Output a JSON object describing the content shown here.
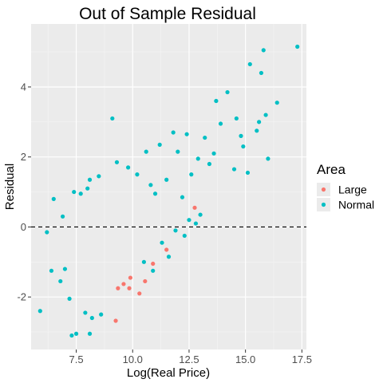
{
  "chart_data": {
    "type": "scatter",
    "title": "Out of Sample Residual",
    "xlabel": "Log(Real Price)",
    "ylabel": "Residual",
    "xlim": [
      5.5,
      17.7
    ],
    "ylim": [
      -3.5,
      5.8
    ],
    "x_ticks": [
      "7.5",
      "10.0",
      "12.5",
      "15.0",
      "17.5"
    ],
    "y_ticks": [
      "-2",
      "0",
      "2",
      "4"
    ],
    "grid": true,
    "reference_line": {
      "y": 0,
      "style": "dashed"
    },
    "legend": {
      "title": "Area",
      "position": "right",
      "entries": [
        {
          "name": "Large",
          "color": "#F8766D"
        },
        {
          "name": "Normal",
          "color": "#00BFC4"
        }
      ]
    },
    "series": [
      {
        "name": "Large",
        "color": "#F8766D",
        "points": [
          [
            9.25,
            -2.68
          ],
          [
            9.6,
            -1.63
          ],
          [
            9.85,
            -1.75
          ],
          [
            10.3,
            -1.9
          ],
          [
            10.55,
            -1.55
          ],
          [
            9.35,
            -1.75
          ],
          [
            11.5,
            -0.65
          ],
          [
            12.75,
            0.55
          ],
          [
            9.9,
            -1.45
          ],
          [
            10.9,
            -1.05
          ]
        ]
      },
      {
        "name": "Normal",
        "color": "#00BFC4",
        "sampled": true,
        "points": [
          [
            17.3,
            5.15
          ],
          [
            15.8,
            5.05
          ],
          [
            15.2,
            4.65
          ],
          [
            15.7,
            4.4
          ],
          [
            16.4,
            3.55
          ],
          [
            14.2,
            3.85
          ],
          [
            13.7,
            3.6
          ],
          [
            15.9,
            3.2
          ],
          [
            15.5,
            2.75
          ],
          [
            14.6,
            3.1
          ],
          [
            13.9,
            2.95
          ],
          [
            13.2,
            2.55
          ],
          [
            12.4,
            2.65
          ],
          [
            11.8,
            2.7
          ],
          [
            14.9,
            2.3
          ],
          [
            13.6,
            2.1
          ],
          [
            12.9,
            1.95
          ],
          [
            16.0,
            1.95
          ],
          [
            11.2,
            2.35
          ],
          [
            10.6,
            2.15
          ],
          [
            9.1,
            3.1
          ],
          [
            12.0,
            2.15
          ],
          [
            14.8,
            2.6
          ],
          [
            13.4,
            1.8
          ],
          [
            12.6,
            1.5
          ],
          [
            6.5,
            0.8
          ],
          [
            6.2,
            -0.15
          ],
          [
            5.9,
            -2.4
          ],
          [
            7.0,
            -1.2
          ],
          [
            7.3,
            -3.1
          ],
          [
            7.5,
            -3.05
          ],
          [
            8.1,
            -3.05
          ],
          [
            8.2,
            -2.6
          ],
          [
            7.9,
            -2.45
          ],
          [
            8.6,
            -2.5
          ],
          [
            7.2,
            -2.05
          ],
          [
            6.8,
            -1.55
          ],
          [
            6.4,
            -1.25
          ],
          [
            6.9,
            0.3
          ],
          [
            7.4,
            1.0
          ],
          [
            7.7,
            0.95
          ],
          [
            8.0,
            1.1
          ],
          [
            8.5,
            1.45
          ],
          [
            8.1,
            1.35
          ],
          [
            9.3,
            1.85
          ],
          [
            9.8,
            1.7
          ],
          [
            10.2,
            1.5
          ],
          [
            12.8,
            0.1
          ],
          [
            13.0,
            0.35
          ],
          [
            12.2,
            0.85
          ],
          [
            11.5,
            1.35
          ],
          [
            11.0,
            0.95
          ],
          [
            10.8,
            1.2
          ],
          [
            14.5,
            1.65
          ],
          [
            15.6,
            3.0
          ],
          [
            15.1,
            1.55
          ],
          [
            11.3,
            -0.45
          ],
          [
            11.6,
            -0.85
          ],
          [
            10.9,
            -1.25
          ],
          [
            10.5,
            -1.0
          ],
          [
            11.9,
            -0.1
          ],
          [
            12.3,
            -0.25
          ],
          [
            12.5,
            0.2
          ]
        ]
      }
    ]
  }
}
